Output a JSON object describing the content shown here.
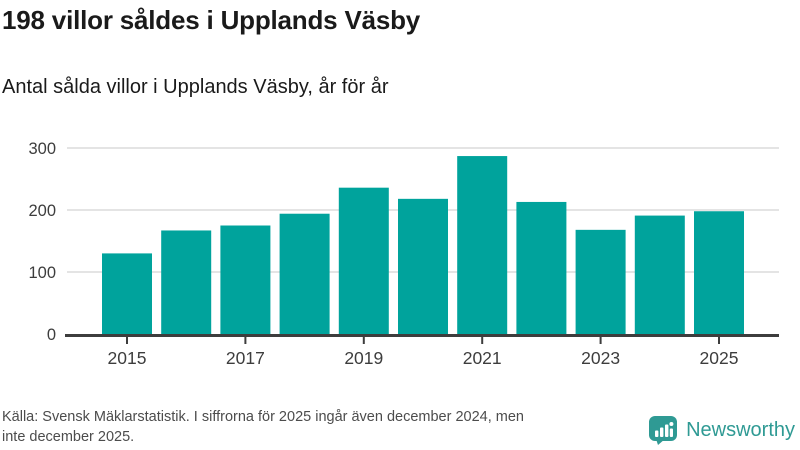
{
  "header": {
    "title": "198 villor såldes i Upplands Väsby",
    "subtitle": "Antal sålda villor i Upplands Väsby, år för år"
  },
  "chart_data": {
    "type": "bar",
    "title": "Antal sålda villor i Upplands Väsby, år för år",
    "categories": [
      "2015",
      "2016",
      "2017",
      "2018",
      "2019",
      "2020",
      "2021",
      "2022",
      "2023",
      "2024",
      "2025"
    ],
    "values": [
      130,
      167,
      175,
      194,
      236,
      218,
      287,
      213,
      168,
      191,
      198
    ],
    "xlabel": "",
    "ylabel": "",
    "ylim": [
      0,
      300
    ],
    "yticks": [
      0,
      100,
      200,
      300
    ],
    "xtick_labels_shown": [
      "2015",
      "2017",
      "2019",
      "2021",
      "2023",
      "2025"
    ],
    "bar_color": "#00a39c",
    "gridline_color": "#e4e4e4",
    "axis_color": "#3d3d3d",
    "tick_label_color": "#3d3d3d",
    "grid": "horizontal",
    "legend": "none"
  },
  "footer": {
    "source_line1": "Källa: Svensk Mäklarstatistik. I siffrorna för 2025 ingår även december 2024, men",
    "source_line2": "inte december 2025.",
    "brand": "Newsworthy",
    "brand_color": "#2f9a94",
    "logo_icon": "bar-chart-speech-bubble-icon"
  }
}
